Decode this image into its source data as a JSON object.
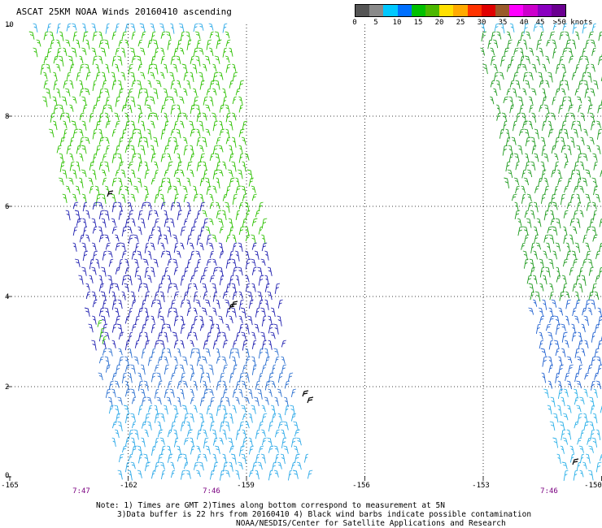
{
  "title": "ASCAT 25KM NOAA Winds 20160410 ascending",
  "legend": {
    "colors": [
      "#555555",
      "#8a8a8a",
      "#00c8ff",
      "#0070ff",
      "#00c000",
      "#4cb800",
      "#ffe000",
      "#ffaa00",
      "#ff3300",
      "#e00000",
      "#9a5a2a",
      "#ff00ff",
      "#cc00cc",
      "#8a00c0",
      "#6a0090"
    ],
    "labels": [
      "0",
      "5",
      "10",
      "15",
      "20",
      "25",
      "30",
      "35",
      "40",
      "45",
      ">50 knots"
    ]
  },
  "y_axis": [
    "10",
    "8",
    "6",
    "4",
    "2",
    "0"
  ],
  "x_axis": [
    "-165",
    "-162",
    "-159",
    "-156",
    "-153",
    "-150"
  ],
  "times": [
    "7:47",
    "7:46",
    "7:46"
  ],
  "notes": [
    "Note: 1) Times are GMT 2)Times along bottom correspond to measurement at 5N",
    "3)Data buffer is 22 hrs from 20160410 4) Black wind barbs indicate possible contamination",
    "NOAA/NESDIS/Center for Satellite Applications and Research"
  ],
  "swaths": [
    {
      "name": "west swath",
      "speed_bands": [
        {
          "lat_range": [
            6.2,
            10
          ],
          "color": "#2cc000",
          "knots": "15-20"
        },
        {
          "lat_range": [
            3.0,
            6.2
          ],
          "color": "#1f1fb0",
          "knots": "10-15"
        },
        {
          "lat_range": [
            1.6,
            3.0
          ],
          "color": "#2a6fd0",
          "knots": "10-15"
        },
        {
          "lat_range": [
            0,
            1.6
          ],
          "color": "#2aa8e8",
          "knots": "5-10"
        }
      ]
    },
    {
      "name": "east swath",
      "speed_bands": [
        {
          "lat_range": [
            4.0,
            10
          ],
          "color": "#1e9a1e",
          "knots": "15-20"
        },
        {
          "lat_range": [
            2.0,
            4.0
          ],
          "color": "#1f60d0",
          "knots": "10-15"
        },
        {
          "lat_range": [
            0,
            2.0
          ],
          "color": "#2ab0e8",
          "knots": "5-10"
        }
      ]
    }
  ]
}
